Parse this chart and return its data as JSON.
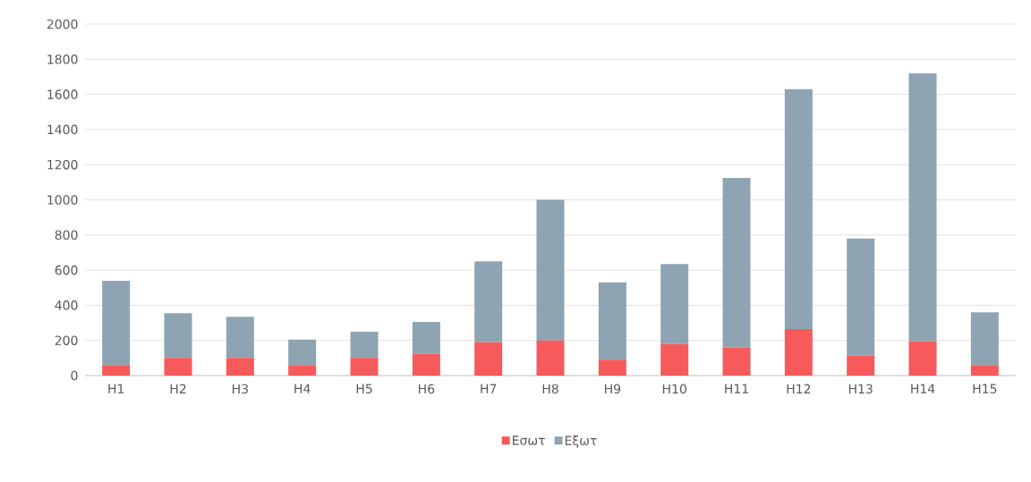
{
  "chart_data": {
    "type": "bar",
    "stacked": true,
    "categories": [
      "H1",
      "H2",
      "H3",
      "H4",
      "H5",
      "H6",
      "H7",
      "H8",
      "H9",
      "H10",
      "H11",
      "H12",
      "H13",
      "H14",
      "H15"
    ],
    "series": [
      {
        "name": "Εσωτ",
        "color": "#f65a5a",
        "values": [
          60,
          100,
          100,
          60,
          100,
          125,
          190,
          200,
          90,
          180,
          160,
          265,
          115,
          195,
          60
        ]
      },
      {
        "name": "Εξωτ",
        "color": "#8ea4b2",
        "values": [
          480,
          255,
          235,
          145,
          150,
          180,
          460,
          800,
          440,
          455,
          965,
          1365,
          665,
          1525,
          300
        ]
      }
    ],
    "ylim": [
      0,
      2000
    ],
    "yticks": [
      0,
      200,
      400,
      600,
      800,
      1000,
      1200,
      1400,
      1600,
      1800,
      2000
    ],
    "grid": "y",
    "legend": "bottom"
  }
}
